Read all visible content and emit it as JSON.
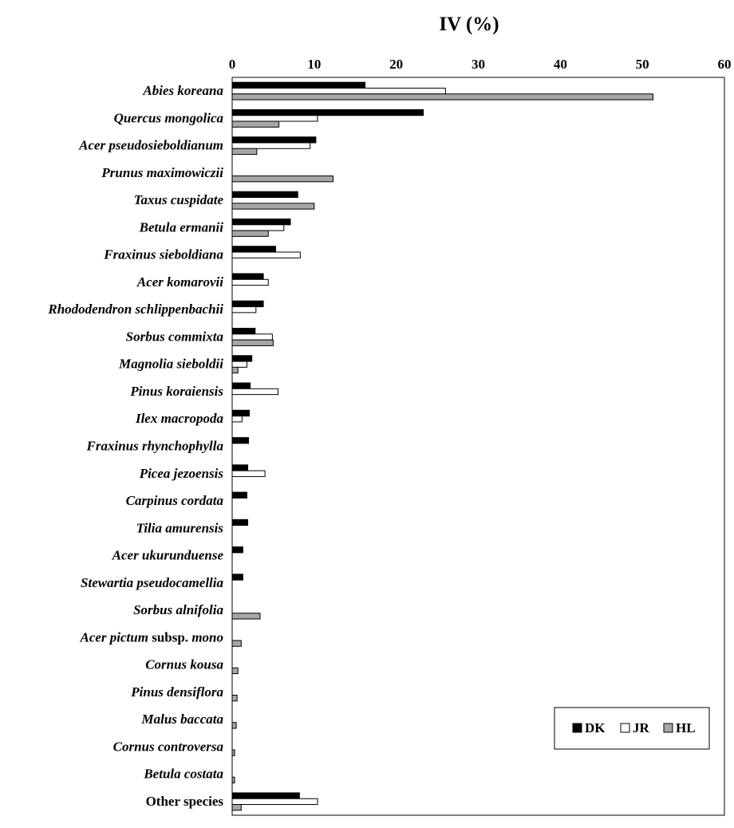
{
  "chart_data": {
    "type": "bar",
    "orientation": "horizontal",
    "title": "IV (%)",
    "xlabel": "",
    "ylabel": "",
    "xlim": [
      0,
      60
    ],
    "x_ticks": [
      "0",
      "10",
      "20",
      "30",
      "40",
      "50",
      "60"
    ],
    "x_axis_position": "top",
    "grid": false,
    "legend_placement": "bottom-right",
    "categories": [
      {
        "prefix": "Abies koreana",
        "suffix": ""
      },
      {
        "prefix": "Quercus mongolica",
        "suffix": ""
      },
      {
        "prefix": "Acer pseudosieboldianum",
        "suffix": ""
      },
      {
        "prefix": "Prunus maximowiczii",
        "suffix": ""
      },
      {
        "prefix": "Taxus cuspidate",
        "suffix": ""
      },
      {
        "prefix": "Betula ermanii",
        "suffix": ""
      },
      {
        "prefix": "Fraxinus sieboldiana",
        "suffix": ""
      },
      {
        "prefix": "Acer komarovii",
        "suffix": ""
      },
      {
        "prefix": "Rhododendron schlippenbachii",
        "suffix": ""
      },
      {
        "prefix": "Sorbus commixta",
        "suffix": ""
      },
      {
        "prefix": "Magnolia sieboldii",
        "suffix": ""
      },
      {
        "prefix": "Pinus koraiensis",
        "suffix": ""
      },
      {
        "prefix": "Ilex macropoda",
        "suffix": ""
      },
      {
        "prefix": "Fraxinus rhynchophylla",
        "suffix": ""
      },
      {
        "prefix": "Picea jezoensis",
        "suffix": ""
      },
      {
        "prefix": "Carpinus cordata",
        "suffix": ""
      },
      {
        "prefix": "Tilia amurensis",
        "suffix": ""
      },
      {
        "prefix": "Acer ukurunduense",
        "suffix": ""
      },
      {
        "prefix": "Stewartia pseudocamellia",
        "suffix": ""
      },
      {
        "prefix": "Sorbus alnifolia",
        "suffix": ""
      },
      {
        "prefix": "Acer pictum",
        "suffix": " subsp. ",
        "suffix2": "mono"
      },
      {
        "prefix": "Cornus kousa",
        "suffix": ""
      },
      {
        "prefix": "Pinus densiflora",
        "suffix": ""
      },
      {
        "prefix": "Malus baccata",
        "suffix": ""
      },
      {
        "prefix": "Cornus controversa",
        "suffix": ""
      },
      {
        "prefix": "Betula costata",
        "suffix": ""
      },
      {
        "prefix": "",
        "suffix": "Other species"
      }
    ],
    "series": [
      {
        "name": "DK",
        "color": "#000000",
        "values": [
          16.2,
          23.3,
          10.2,
          0,
          8.0,
          7.1,
          5.3,
          3.8,
          3.8,
          2.8,
          2.4,
          2.2,
          2.1,
          2.0,
          1.9,
          1.8,
          1.9,
          1.3,
          1.3,
          0,
          0,
          0,
          0,
          0,
          0,
          0,
          8.2
        ]
      },
      {
        "name": "JR",
        "color": "#ffffff",
        "values": [
          26.0,
          10.4,
          9.5,
          0,
          0,
          6.3,
          8.3,
          4.4,
          2.9,
          4.9,
          1.8,
          5.6,
          1.2,
          0,
          4.0,
          0,
          0,
          0,
          0,
          0,
          0,
          0,
          0,
          0,
          0,
          0,
          10.4
        ]
      },
      {
        "name": "HL",
        "color": "#a6a6a6",
        "values": [
          51.3,
          5.7,
          3.0,
          12.3,
          10.0,
          4.4,
          0,
          0,
          0,
          5.0,
          0.7,
          0,
          0,
          0,
          0,
          0,
          0,
          0,
          0,
          3.4,
          1.1,
          0.7,
          0.6,
          0.5,
          0.3,
          0.3,
          1.1
        ]
      }
    ]
  }
}
